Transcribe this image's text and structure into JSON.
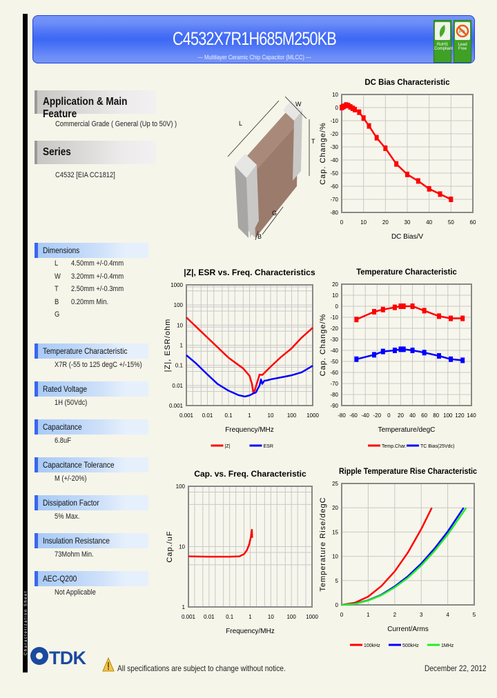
{
  "sidebar_label": "Characterization Sheet",
  "header": {
    "title": "C4532X7R1H685M250KB",
    "subtitle": "--- Multilayer Ceramic Chip Capacitor (MLCC) ---",
    "badges": [
      {
        "label1": "RoHS",
        "label2": "Compliant",
        "icon": "leaf-icon"
      },
      {
        "label1": "Lead",
        "label2": "Free",
        "icon": "no-lead-icon"
      }
    ]
  },
  "application": {
    "heading": "Application & Main Feature",
    "value": "Commercial Grade ( General (Up to 50V) )"
  },
  "series": {
    "heading": "Series",
    "value": "C4532 [EIA CC1812]"
  },
  "diagram_labels": {
    "L": "L",
    "W": "W",
    "T": "T",
    "G": "G",
    "B": "B"
  },
  "dimensions": {
    "heading": "Dimensions",
    "rows": [
      {
        "key": "L",
        "value": "4.50mm +/-0.4mm"
      },
      {
        "key": "W",
        "value": "3.20mm +/-0.4mm"
      },
      {
        "key": "T",
        "value": "2.50mm +/-0.3mm"
      },
      {
        "key": "B",
        "value": "0.20mm Min."
      },
      {
        "key": "G",
        "value": ""
      }
    ]
  },
  "specs": [
    {
      "heading": "Temperature Characteristic",
      "value": "X7R (-55 to 125 degC +/-15%)"
    },
    {
      "heading": "Rated Voltage",
      "value": "1H (50Vdc)"
    },
    {
      "heading": "Capacitance",
      "value": "6.8uF"
    },
    {
      "heading": "Capacitance Tolerance",
      "value": "M (+/-20%)"
    },
    {
      "heading": "Dissipation Factor",
      "value": "5% Max."
    },
    {
      "heading": "Insulation Resistance",
      "value": "73Mohm Min."
    },
    {
      "heading": "AEC-Q200",
      "value": "Not Applicable"
    }
  ],
  "footer": {
    "logo": "TDK",
    "notice": "All specifications are subject to change without notice.",
    "date": "December 22, 2012"
  },
  "chart_data": [
    {
      "id": "dcbias",
      "type": "line",
      "title": "DC Bias Characteristic",
      "xlabel": "DC Bias/V",
      "ylabel": "Cap. Change/%",
      "xlim": [
        0,
        60
      ],
      "ylim": [
        -80,
        10
      ],
      "xscale": "linear",
      "yscale": "linear",
      "xticks": [
        0,
        10,
        20,
        30,
        40,
        50,
        60
      ],
      "yticks": [
        10,
        0,
        -10,
        -20,
        -30,
        -40,
        -50,
        -60,
        -70,
        -80
      ],
      "grid": true,
      "legend": "none",
      "series": [
        {
          "color": "#ff0000",
          "markers": true,
          "x": [
            0,
            0.5,
            1,
            2,
            3,
            4,
            5,
            6,
            8,
            10,
            12.5,
            16,
            20,
            25,
            30,
            35,
            40,
            45,
            50
          ],
          "y": [
            0,
            0.5,
            1,
            2,
            1.5,
            0.5,
            -0.5,
            -1.5,
            -3.5,
            -8,
            -14,
            -23,
            -31,
            -43,
            -51,
            -56,
            -62,
            -66,
            -70
          ]
        }
      ]
    },
    {
      "id": "impedance",
      "type": "line",
      "title": "|Z|, ESR vs. Freq. Characteristics",
      "xlabel": "Frequency/MHz",
      "ylabel": "|Z|, ESR/ohm",
      "xlim": [
        0.001,
        1000
      ],
      "ylim": [
        0.001,
        1000
      ],
      "xscale": "log",
      "yscale": "log",
      "xticks": [
        0.001,
        0.01,
        0.1,
        1,
        10,
        100,
        1000
      ],
      "yticks": [
        1000,
        100,
        10,
        1,
        0.1,
        0.01,
        0.001
      ],
      "grid": true,
      "legend": "bottom",
      "series": [
        {
          "name": "|Z|",
          "color": "#ff0000",
          "markers": false,
          "x": [
            0.001,
            0.01,
            0.1,
            0.5,
            1,
            1.3,
            1.5,
            1.8,
            2.2,
            3,
            4,
            6,
            10,
            30,
            100,
            300,
            1000
          ],
          "y": [
            24,
            2.4,
            0.24,
            0.07,
            0.03,
            0.012,
            0.0045,
            0.006,
            0.012,
            0.035,
            0.033,
            0.05,
            0.085,
            0.25,
            0.7,
            2.4,
            7.4
          ]
        },
        {
          "name": "ESR",
          "color": "#0000ff",
          "markers": false,
          "x": [
            0.001,
            0.003,
            0.01,
            0.03,
            0.1,
            0.3,
            0.6,
            1,
            1.5,
            2,
            3,
            3.5,
            4,
            5,
            7,
            10,
            30,
            100,
            300,
            1000
          ],
          "y": [
            0.32,
            0.12,
            0.035,
            0.012,
            0.0055,
            0.0033,
            0.0028,
            0.0032,
            0.004,
            0.0045,
            0.01,
            0.02,
            0.012,
            0.017,
            0.018,
            0.02,
            0.025,
            0.032,
            0.045,
            0.095
          ]
        }
      ]
    },
    {
      "id": "temperature",
      "type": "line",
      "title": "Temperature Characteristic",
      "xlabel": "Temperature/degC",
      "ylabel": "Cap. Change/%",
      "xlim": [
        -80,
        140
      ],
      "ylim": [
        -90,
        20
      ],
      "xscale": "linear",
      "yscale": "linear",
      "xticks": [
        -80,
        -60,
        -40,
        -20,
        0,
        20,
        40,
        60,
        80,
        100,
        120,
        140
      ],
      "yticks": [
        20,
        10,
        0,
        -10,
        -20,
        -30,
        -40,
        -50,
        -60,
        -70,
        -80,
        -90
      ],
      "grid": true,
      "legend": "bottom",
      "series": [
        {
          "name": "Temp.Char.",
          "color": "#ff0000",
          "markers": true,
          "x": [
            -55,
            -25,
            -10,
            10,
            20,
            25,
            40,
            60,
            85,
            105,
            125
          ],
          "y": [
            -12,
            -5,
            -3,
            -1,
            0,
            0,
            0,
            -4,
            -9,
            -11,
            -11
          ]
        },
        {
          "name": "TC Bias(25Vdc)",
          "color": "#0000ff",
          "markers": true,
          "x": [
            -55,
            -25,
            -10,
            10,
            20,
            25,
            40,
            60,
            85,
            105,
            125
          ],
          "y": [
            -48,
            -44,
            -41,
            -40,
            -39,
            -39,
            -40,
            -42,
            -45,
            -48,
            -49
          ]
        }
      ]
    },
    {
      "id": "capfreq",
      "type": "line",
      "title": "Cap. vs. Freq. Characteristic",
      "xlabel": "Frequency/MHz",
      "ylabel": "Cap./uF",
      "xlim": [
        0.001,
        1000
      ],
      "ylim": [
        1,
        100
      ],
      "xscale": "log",
      "yscale": "log",
      "xticks": [
        0.001,
        0.01,
        0.1,
        1,
        10,
        100,
        1000
      ],
      "yticks": [
        100,
        10,
        1
      ],
      "grid": true,
      "legend": "none",
      "series": [
        {
          "color": "#ff0000",
          "markers": false,
          "x": [
            0.001,
            0.01,
            0.1,
            0.3,
            0.5,
            0.7,
            0.9,
            1.1,
            1.2,
            1.25
          ],
          "y": [
            6.9,
            6.8,
            6.8,
            6.9,
            7.5,
            8.8,
            11,
            15,
            19,
            14
          ]
        }
      ]
    },
    {
      "id": "ripple",
      "type": "line",
      "title": "Ripple Temperature Rise Characteristic",
      "xlabel": "Current/Arms",
      "ylabel": "Temperature Rise/degC",
      "xlim": [
        0,
        5
      ],
      "ylim": [
        0,
        25
      ],
      "xscale": "linear",
      "yscale": "linear",
      "xticks": [
        0,
        1,
        2,
        3,
        4,
        5
      ],
      "yticks": [
        25,
        20,
        15,
        10,
        5,
        0
      ],
      "grid": true,
      "legend": "bottom",
      "series": [
        {
          "name": "100kHz",
          "color": "#ff0000",
          "markers": false,
          "x": [
            0,
            0.5,
            1,
            1.5,
            2,
            2.5,
            3,
            3.4
          ],
          "y": [
            0,
            0.45,
            1.7,
            3.9,
            6.9,
            10.8,
            15.6,
            20
          ]
        },
        {
          "name": "500kHz",
          "color": "#0000ff",
          "markers": false,
          "x": [
            0,
            0.5,
            1,
            1.5,
            2,
            2.5,
            3,
            3.5,
            4,
            4.6
          ],
          "y": [
            0,
            0.25,
            0.95,
            2.1,
            3.8,
            5.9,
            8.5,
            11.6,
            15.1,
            20
          ]
        },
        {
          "name": "1MHz",
          "color": "#22ee22",
          "markers": false,
          "x": [
            0,
            0.5,
            1,
            1.5,
            2,
            2.5,
            3,
            3.5,
            4,
            4.7
          ],
          "y": [
            0,
            0.22,
            0.9,
            2.0,
            3.6,
            5.6,
            8.1,
            11.1,
            14.5,
            20
          ]
        }
      ]
    }
  ]
}
